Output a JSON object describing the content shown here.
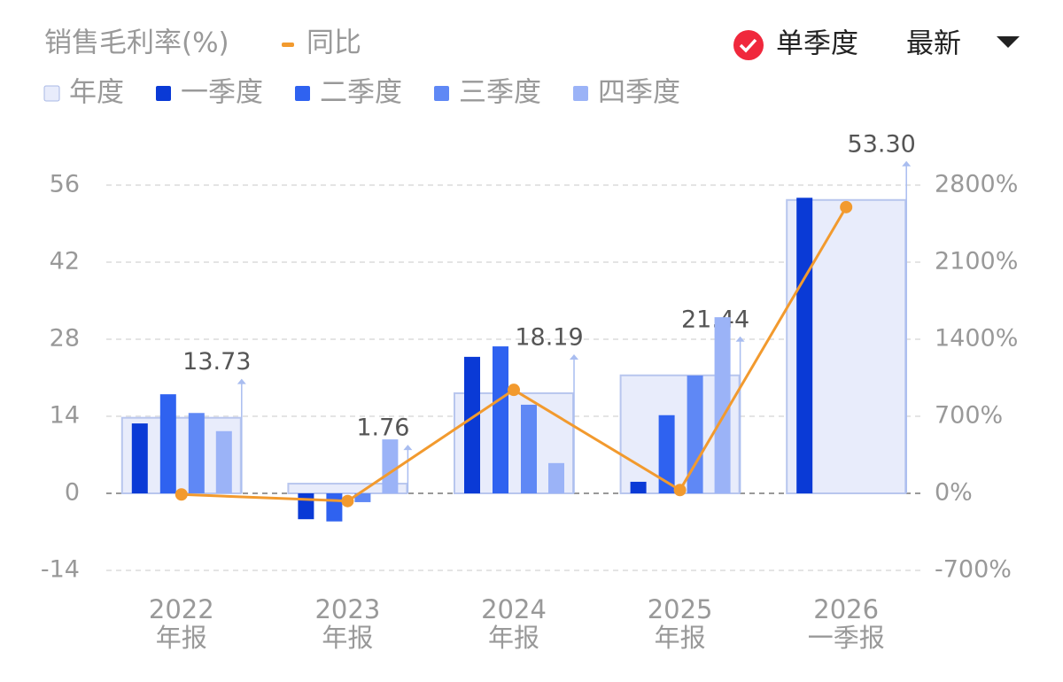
{
  "chart_data": {
    "type": "bar",
    "title": "销售毛利率(%)",
    "controls": {
      "single_quarter": "单季度",
      "period": "最新"
    },
    "categories": [
      [
        "2022",
        "年报"
      ],
      [
        "2023",
        "年报"
      ],
      [
        "2024",
        "年报"
      ],
      [
        "2025",
        "年报"
      ],
      [
        "2026",
        "一季报"
      ]
    ],
    "series": [
      {
        "name": "年度",
        "color": "#e8ecfb",
        "values": [
          13.73,
          1.76,
          18.19,
          21.44,
          53.3
        ],
        "value_labels": [
          "13.73",
          "1.76",
          "18.19",
          "21.44",
          "53.30"
        ]
      },
      {
        "name": "一季度",
        "color": "#0a3ad6",
        "values": [
          12.7,
          -4.7,
          24.8,
          2.1,
          53.7
        ]
      },
      {
        "name": "二季度",
        "color": "#2f62f0",
        "values": [
          18.0,
          -5.1,
          26.7,
          14.2,
          null
        ]
      },
      {
        "name": "三季度",
        "color": "#5f88f5",
        "values": [
          14.6,
          -1.6,
          16.1,
          21.4,
          null
        ]
      },
      {
        "name": "四季度",
        "color": "#9bb3f7",
        "values": [
          11.3,
          9.8,
          5.5,
          32.0,
          null
        ]
      },
      {
        "name": "同比",
        "type": "line",
        "axis": "y2",
        "color": "#f29a2e",
        "values": [
          -10,
          -70,
          940,
          30,
          2600
        ]
      }
    ],
    "ylim": [
      -14,
      56
    ],
    "yticks": [
      -14,
      0,
      14,
      28,
      42,
      56
    ],
    "y2lim": [
      -700,
      2800
    ],
    "y2ticks": [
      {
        "value": -700,
        "label": "-700%"
      },
      {
        "value": 0,
        "label": "0%"
      },
      {
        "value": 700,
        "label": "700%"
      },
      {
        "value": 1400,
        "label": "1400%"
      },
      {
        "value": 2100,
        "label": "2100%"
      },
      {
        "value": 2800,
        "label": "2800%"
      }
    ],
    "grid": true
  }
}
